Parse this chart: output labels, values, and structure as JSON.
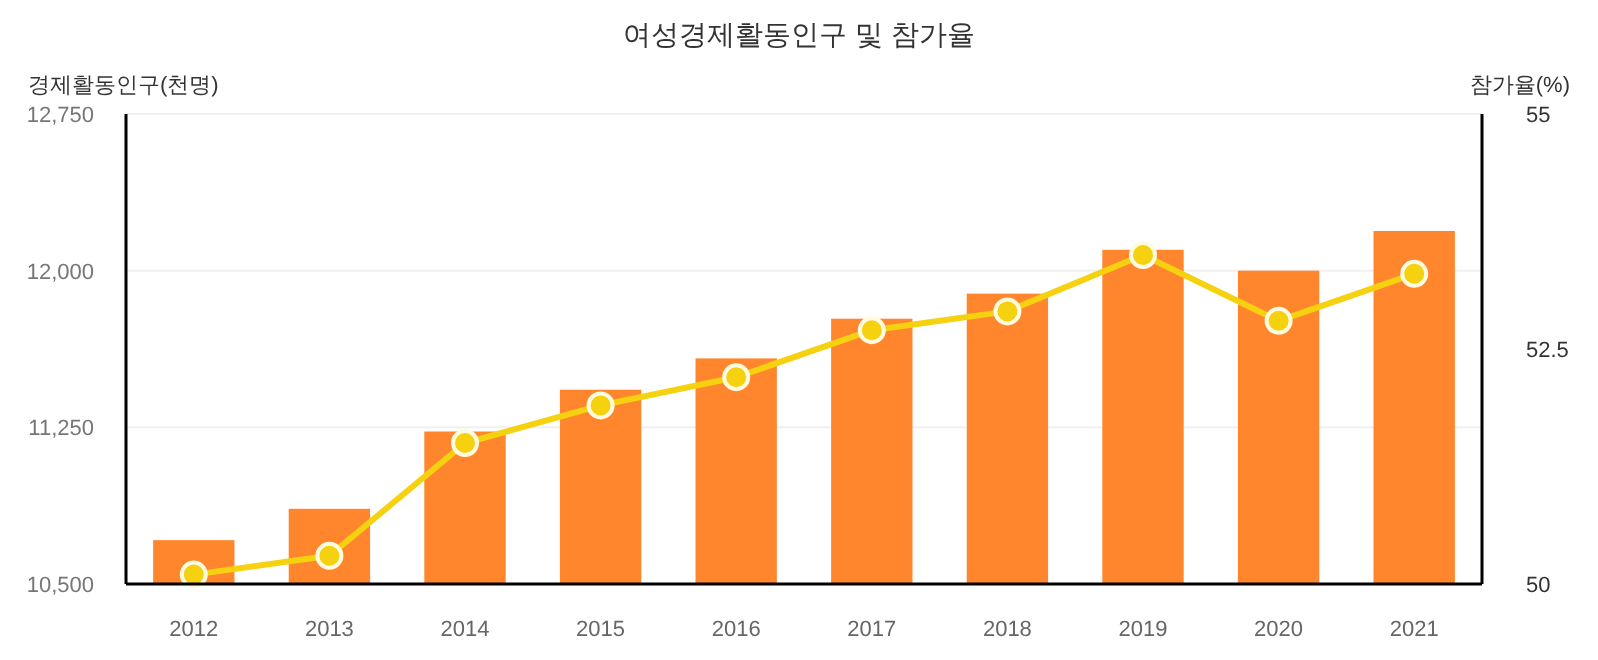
{
  "chart_data": {
    "type": "bar",
    "title": "여성경제활동인구 및 참가율",
    "ylabel": "경제활동인구(천명)",
    "y2label": "참가율(%)",
    "categories": [
      "2012",
      "2013",
      "2014",
      "2015",
      "2016",
      "2017",
      "2018",
      "2019",
      "2020",
      "2021"
    ],
    "series": [
      {
        "color": "#ff862c",
        "values": [
          10710,
          10860,
          11230,
          11430,
          11580,
          11770,
          11890,
          12100,
          12000,
          12190
        ]
      },
      {
        "type": "line",
        "axis": "y2",
        "color": "#f5d10f",
        "marker": "circle",
        "values": [
          50.1,
          50.3,
          51.5,
          51.9,
          52.2,
          52.7,
          52.9,
          53.5,
          52.8,
          53.3
        ]
      }
    ],
    "ylim": [
      10500,
      12750
    ],
    "yticks": [
      {
        "value": 10500,
        "label": "10,500"
      },
      {
        "value": 11250,
        "label": "11,250"
      },
      {
        "value": 12000,
        "label": "12,000"
      },
      {
        "value": 12750,
        "label": "12,750"
      }
    ],
    "y2lim": [
      50,
      55
    ],
    "y2ticks": [
      50,
      52.5,
      55
    ],
    "grid": "y"
  }
}
